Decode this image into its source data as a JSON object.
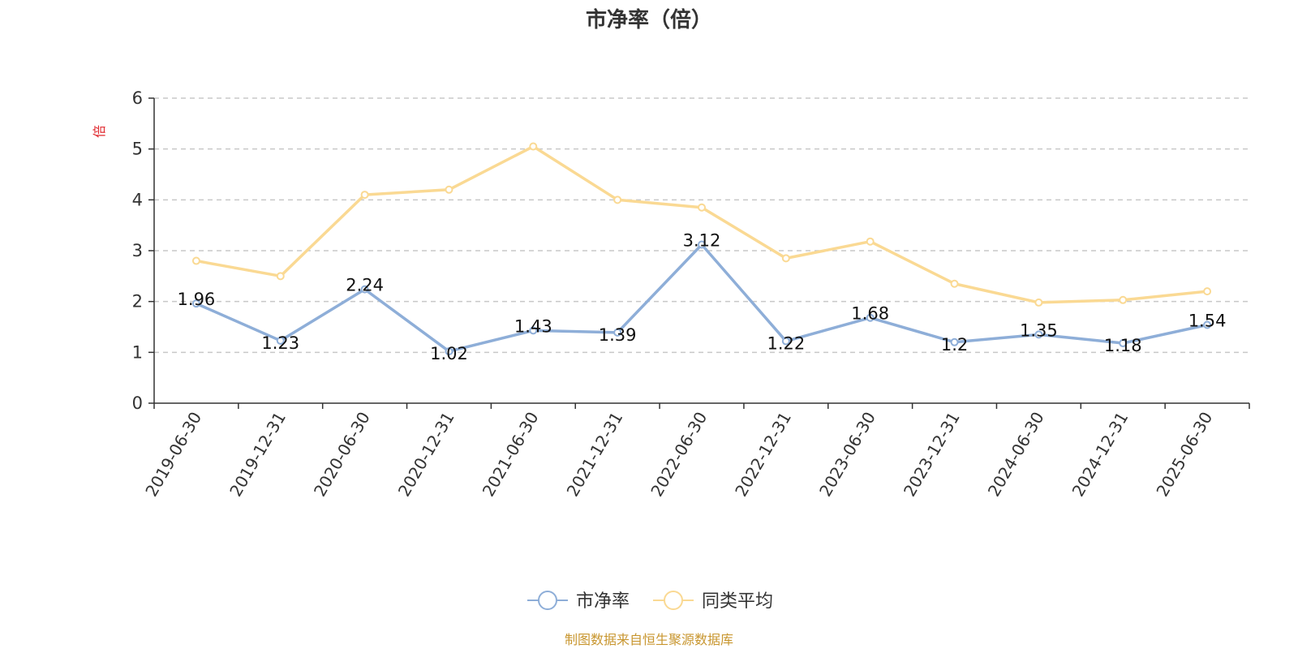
{
  "chart_data": {
    "type": "line",
    "title": "市净率（倍）",
    "ylabel": "倍",
    "categories": [
      "2019-06-30",
      "2019-12-31",
      "2020-06-30",
      "2020-12-31",
      "2021-06-30",
      "2021-12-31",
      "2022-06-30",
      "2022-12-31",
      "2023-06-30",
      "2023-12-31",
      "2024-06-30",
      "2024-12-31",
      "2025-06-30"
    ],
    "ylim": [
      0,
      6
    ],
    "yticks": [
      "0",
      "1",
      "2",
      "3",
      "4",
      "5",
      "6"
    ],
    "grid": true,
    "legend_position": "bottom-center",
    "series": [
      {
        "name": "市净率",
        "color": "#8eaed8",
        "values": [
          1.96,
          1.23,
          2.24,
          1.02,
          1.43,
          1.39,
          3.12,
          1.22,
          1.68,
          1.2,
          1.35,
          1.18,
          1.54
        ],
        "labels": [
          "1.96",
          "1.23",
          "2.24",
          "1.02",
          "1.43",
          "1.39",
          "3.12",
          "1.22",
          "1.68",
          "1.2",
          "1.35",
          "1.18",
          "1.54"
        ]
      },
      {
        "name": "同类平均",
        "color": "#fad993",
        "values": [
          2.8,
          2.5,
          4.1,
          4.2,
          5.05,
          4.0,
          3.85,
          2.85,
          3.18,
          2.35,
          1.98,
          2.03,
          2.2
        ]
      }
    ],
    "source": "制图数据来自恒生聚源数据库"
  }
}
